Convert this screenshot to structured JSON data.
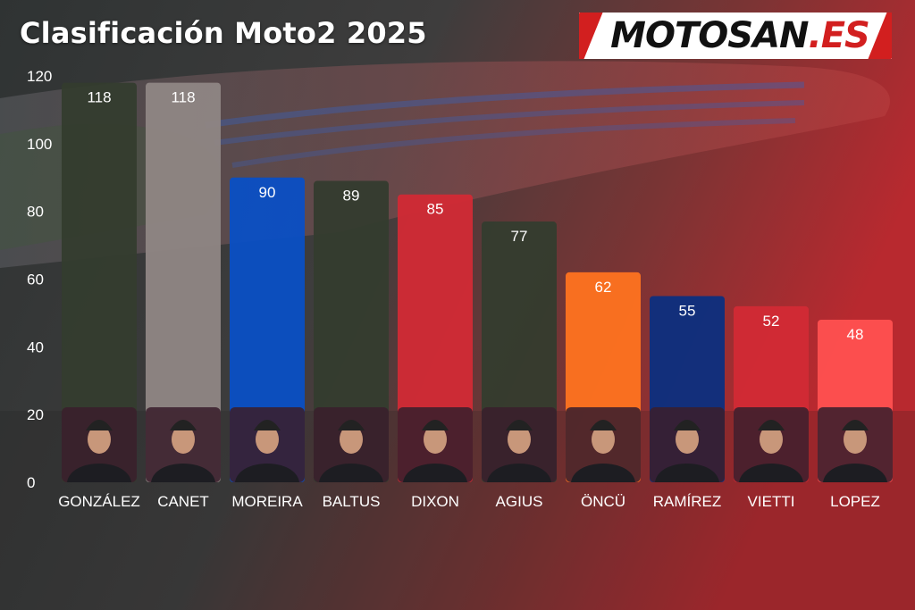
{
  "title": "Clasificación Moto2 2025",
  "logo": {
    "main": "MOTOSAN",
    "suffix": ".ES"
  },
  "chart_data": {
    "type": "bar",
    "title": "Clasificación Moto2 2025",
    "xlabel": "",
    "ylabel": "",
    "ylim": [
      0,
      120
    ],
    "yticks": [
      0,
      20,
      40,
      60,
      80,
      100,
      120
    ],
    "grid": false,
    "categories": [
      "GONZÁLEZ",
      "CANET",
      "MOREIRA",
      "BALTUS",
      "DIXON",
      "AGIUS",
      "ÖNCÜ",
      "RAMÍREZ",
      "VIETTI",
      "LOPEZ"
    ],
    "values": [
      118,
      118,
      90,
      89,
      85,
      77,
      62,
      55,
      52,
      48
    ],
    "colors": [
      "#343c2e",
      "#8f8684",
      "#0a4fc4",
      "#343c2e",
      "#d22a35",
      "#343c2e",
      "#ff7320",
      "#0c2f80",
      "#d22a35",
      "#ff5050"
    ],
    "data_labels": true
  }
}
